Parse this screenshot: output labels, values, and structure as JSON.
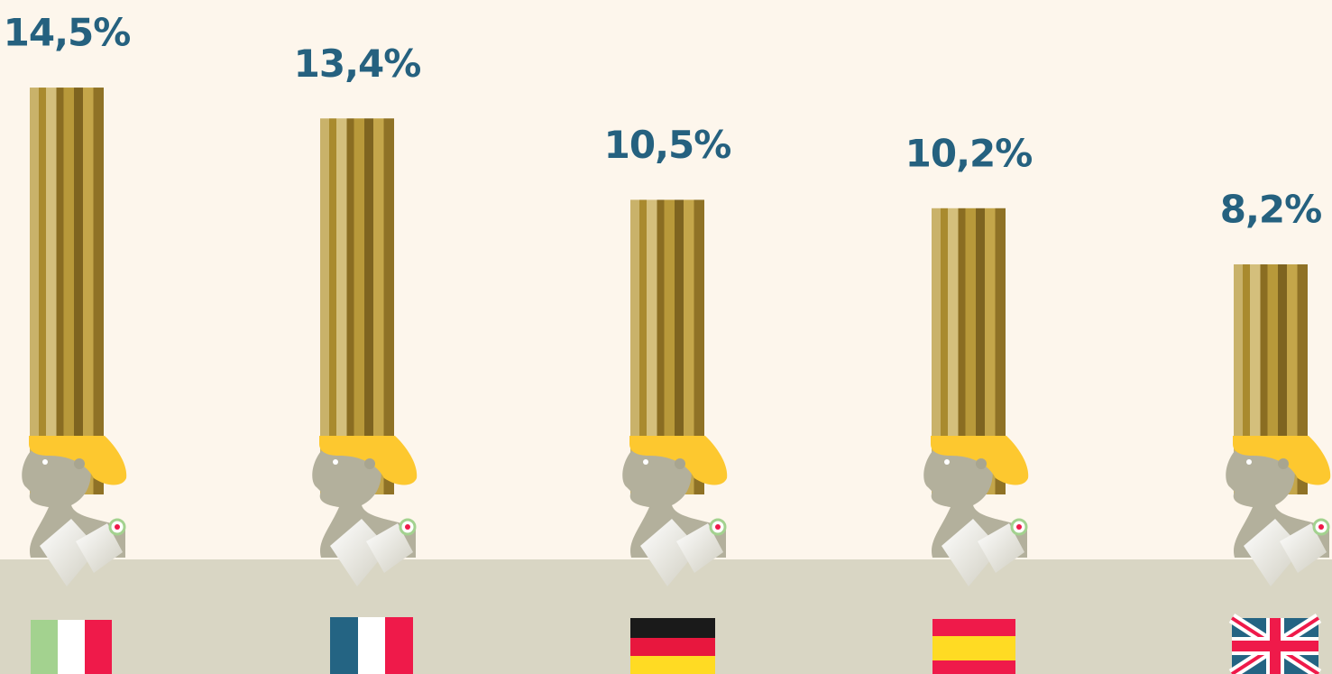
{
  "chart_data": {
    "type": "bar",
    "categories": [
      null,
      null,
      null,
      null,
      null
    ],
    "values": [
      14.5,
      13.4,
      10.5,
      10.2,
      8.2
    ],
    "value_labels": [
      "14,5%",
      "13,4%",
      "10,5%",
      "10,2%",
      "8,2%"
    ],
    "color": "#b8993a"
  }
}
